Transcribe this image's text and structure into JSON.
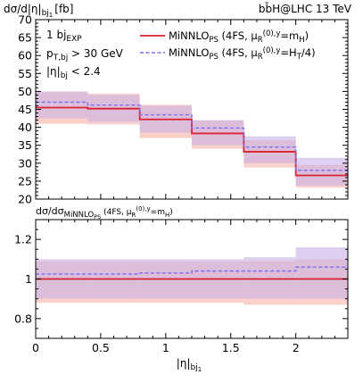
{
  "header": {
    "ylabel": "dσ/d|η|",
    "ylabel_sub": "bj",
    "ylabel_subsub": "1",
    "ylabel_unit": "[fb]",
    "process": "bb̄H@LHC 13 TeV"
  },
  "cuts": [
    {
      "main": "1 bj",
      "sub": "EXP",
      "tail": ""
    },
    {
      "main": "p",
      "sub": "T,bj",
      "tail": " > 30 GeV"
    },
    {
      "main": "|η|",
      "sub": "bj",
      "tail": " < 2.4"
    }
  ],
  "ratio_label": {
    "main": "dσ/dσ",
    "sub": "MiNNLO",
    "subsub": "PS",
    "tail": " (4FS, μ",
    "tail_sub": "R",
    "tail_sup": "(0),y",
    "tail_end": "=m",
    "tail_end_sub": "H",
    "tail_close": ")"
  },
  "chart_data": {
    "type": "line",
    "step": true,
    "x_edges": [
      0,
      0.4,
      0.8,
      1.2,
      1.6,
      2.0,
      2.4
    ],
    "xlabel": "|η|",
    "xlabel_sub": "bj",
    "xlabel_subsub": "1",
    "xlim": [
      0,
      2.4
    ],
    "xticks": [
      "0",
      "0.5",
      "1",
      "1.5",
      "2"
    ],
    "xtick_values": [
      0,
      0.5,
      1,
      1.5,
      2
    ],
    "main": {
      "ylim": [
        20,
        70
      ],
      "yticks": [
        "20",
        "25",
        "30",
        "35",
        "40",
        "45",
        "50",
        "55",
        "60",
        "65",
        "70"
      ],
      "ytick_values": [
        20,
        25,
        30,
        35,
        40,
        45,
        50,
        55,
        60,
        65,
        70
      ]
    },
    "ratio": {
      "ylim": [
        0.7,
        1.3
      ],
      "yticks": [
        "0.8",
        "1",
        "1.2"
      ],
      "ytick_values": [
        0.8,
        1.0,
        1.2
      ]
    },
    "series": [
      {
        "name": "MiNNLO",
        "name_sub": "PS",
        "name_tail": " (4FS, μ",
        "name_tail_sub": "R",
        "name_tail_sup": "(0),y",
        "name_tail_end": "=m",
        "name_tail_end_sub": "H",
        "name_close": ")",
        "color": "#d9232e",
        "band_color": "#f6b3a8",
        "dashed": false,
        "values": [
          45.5,
          45.2,
          42.2,
          38.3,
          33.2,
          26.6
        ],
        "band_low": [
          41.0,
          40.8,
          37.0,
          34.0,
          28.8,
          23.2
        ],
        "band_high": [
          49.8,
          49.4,
          46.3,
          41.9,
          36.4,
          29.5
        ],
        "ratio": [
          1.0,
          1.0,
          1.0,
          1.0,
          1.0,
          1.0
        ],
        "ratio_low": [
          0.88,
          0.88,
          0.88,
          0.88,
          0.87,
          0.87
        ],
        "ratio_high": [
          1.09,
          1.09,
          1.09,
          1.09,
          1.09,
          1.1
        ]
      },
      {
        "name": "MiNNLO",
        "name_sub": "PS",
        "name_tail": " (4FS, μ",
        "name_tail_sub": "R",
        "name_tail_sup": "(0),y",
        "name_tail_end": "=H",
        "name_tail_end_sub": "T",
        "name_close": "/4)",
        "color": "#7b6cf0",
        "band_color": "#c8b0e6",
        "dashed": true,
        "values": [
          47.0,
          46.2,
          43.5,
          39.8,
          34.5,
          28.0
        ],
        "band_low": [
          42.5,
          41.5,
          38.5,
          35.0,
          30.0,
          23.8
        ],
        "band_high": [
          50.0,
          49.0,
          46.0,
          42.0,
          37.5,
          31.5
        ],
        "ratio": [
          1.025,
          1.025,
          1.03,
          1.04,
          1.04,
          1.06
        ],
        "ratio_low": [
          0.9,
          0.9,
          0.9,
          0.9,
          0.9,
          0.9
        ],
        "ratio_high": [
          1.1,
          1.1,
          1.1,
          1.1,
          1.11,
          1.16
        ]
      }
    ]
  }
}
